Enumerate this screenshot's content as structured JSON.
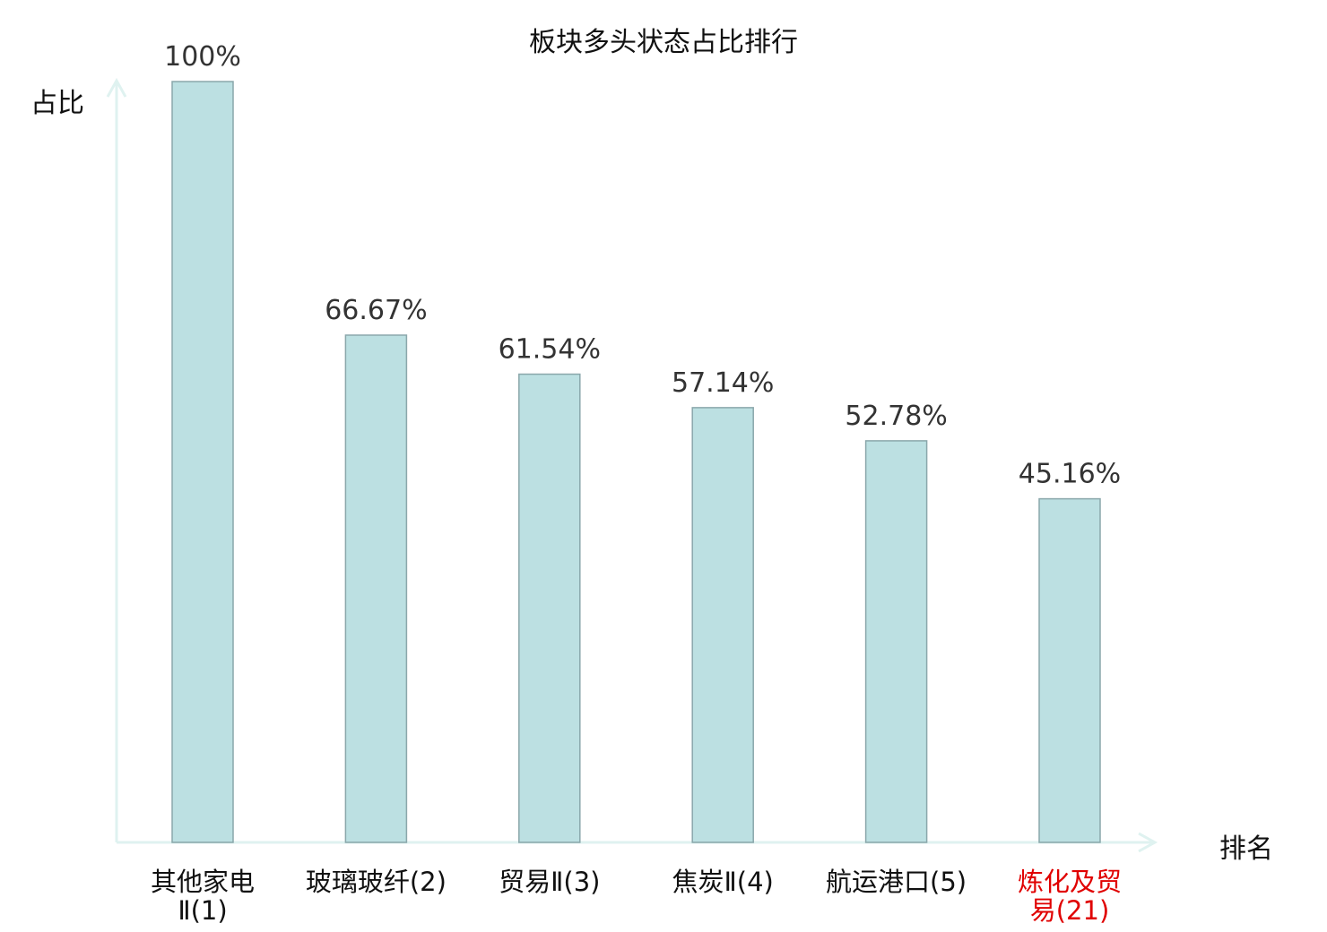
{
  "chart_data": {
    "type": "bar",
    "title": "板块多头状态占比排行",
    "ylabel": "占比",
    "xlabel": "排名",
    "ylim": [
      0,
      100
    ],
    "grid": false,
    "legend": "none",
    "categories": [
      {
        "name_lines": [
          "其他家电",
          "Ⅱ(1)"
        ],
        "highlight": false
      },
      {
        "name_lines": [
          "玻璃玻纤(2)"
        ],
        "highlight": false
      },
      {
        "name_lines": [
          "贸易Ⅱ(3)"
        ],
        "highlight": false
      },
      {
        "name_lines": [
          "焦炭Ⅱ(4)"
        ],
        "highlight": false
      },
      {
        "name_lines": [
          "航运港口(5)"
        ],
        "highlight": false
      },
      {
        "name_lines": [
          "炼化及贸",
          "易(21)"
        ],
        "highlight": true
      }
    ],
    "values": [
      100,
      66.67,
      61.54,
      57.14,
      52.78,
      45.16
    ],
    "value_labels": [
      "100%",
      "66.67%",
      "61.54%",
      "57.14%",
      "52.78%",
      "45.16%"
    ]
  },
  "colors": {
    "bar_fill": "#bce0e2",
    "bar_stroke": "#8aa7ab",
    "axis": "#dff2f0",
    "label_text": "#333333",
    "category_text": "#111111",
    "highlight_text": "#e00000"
  }
}
